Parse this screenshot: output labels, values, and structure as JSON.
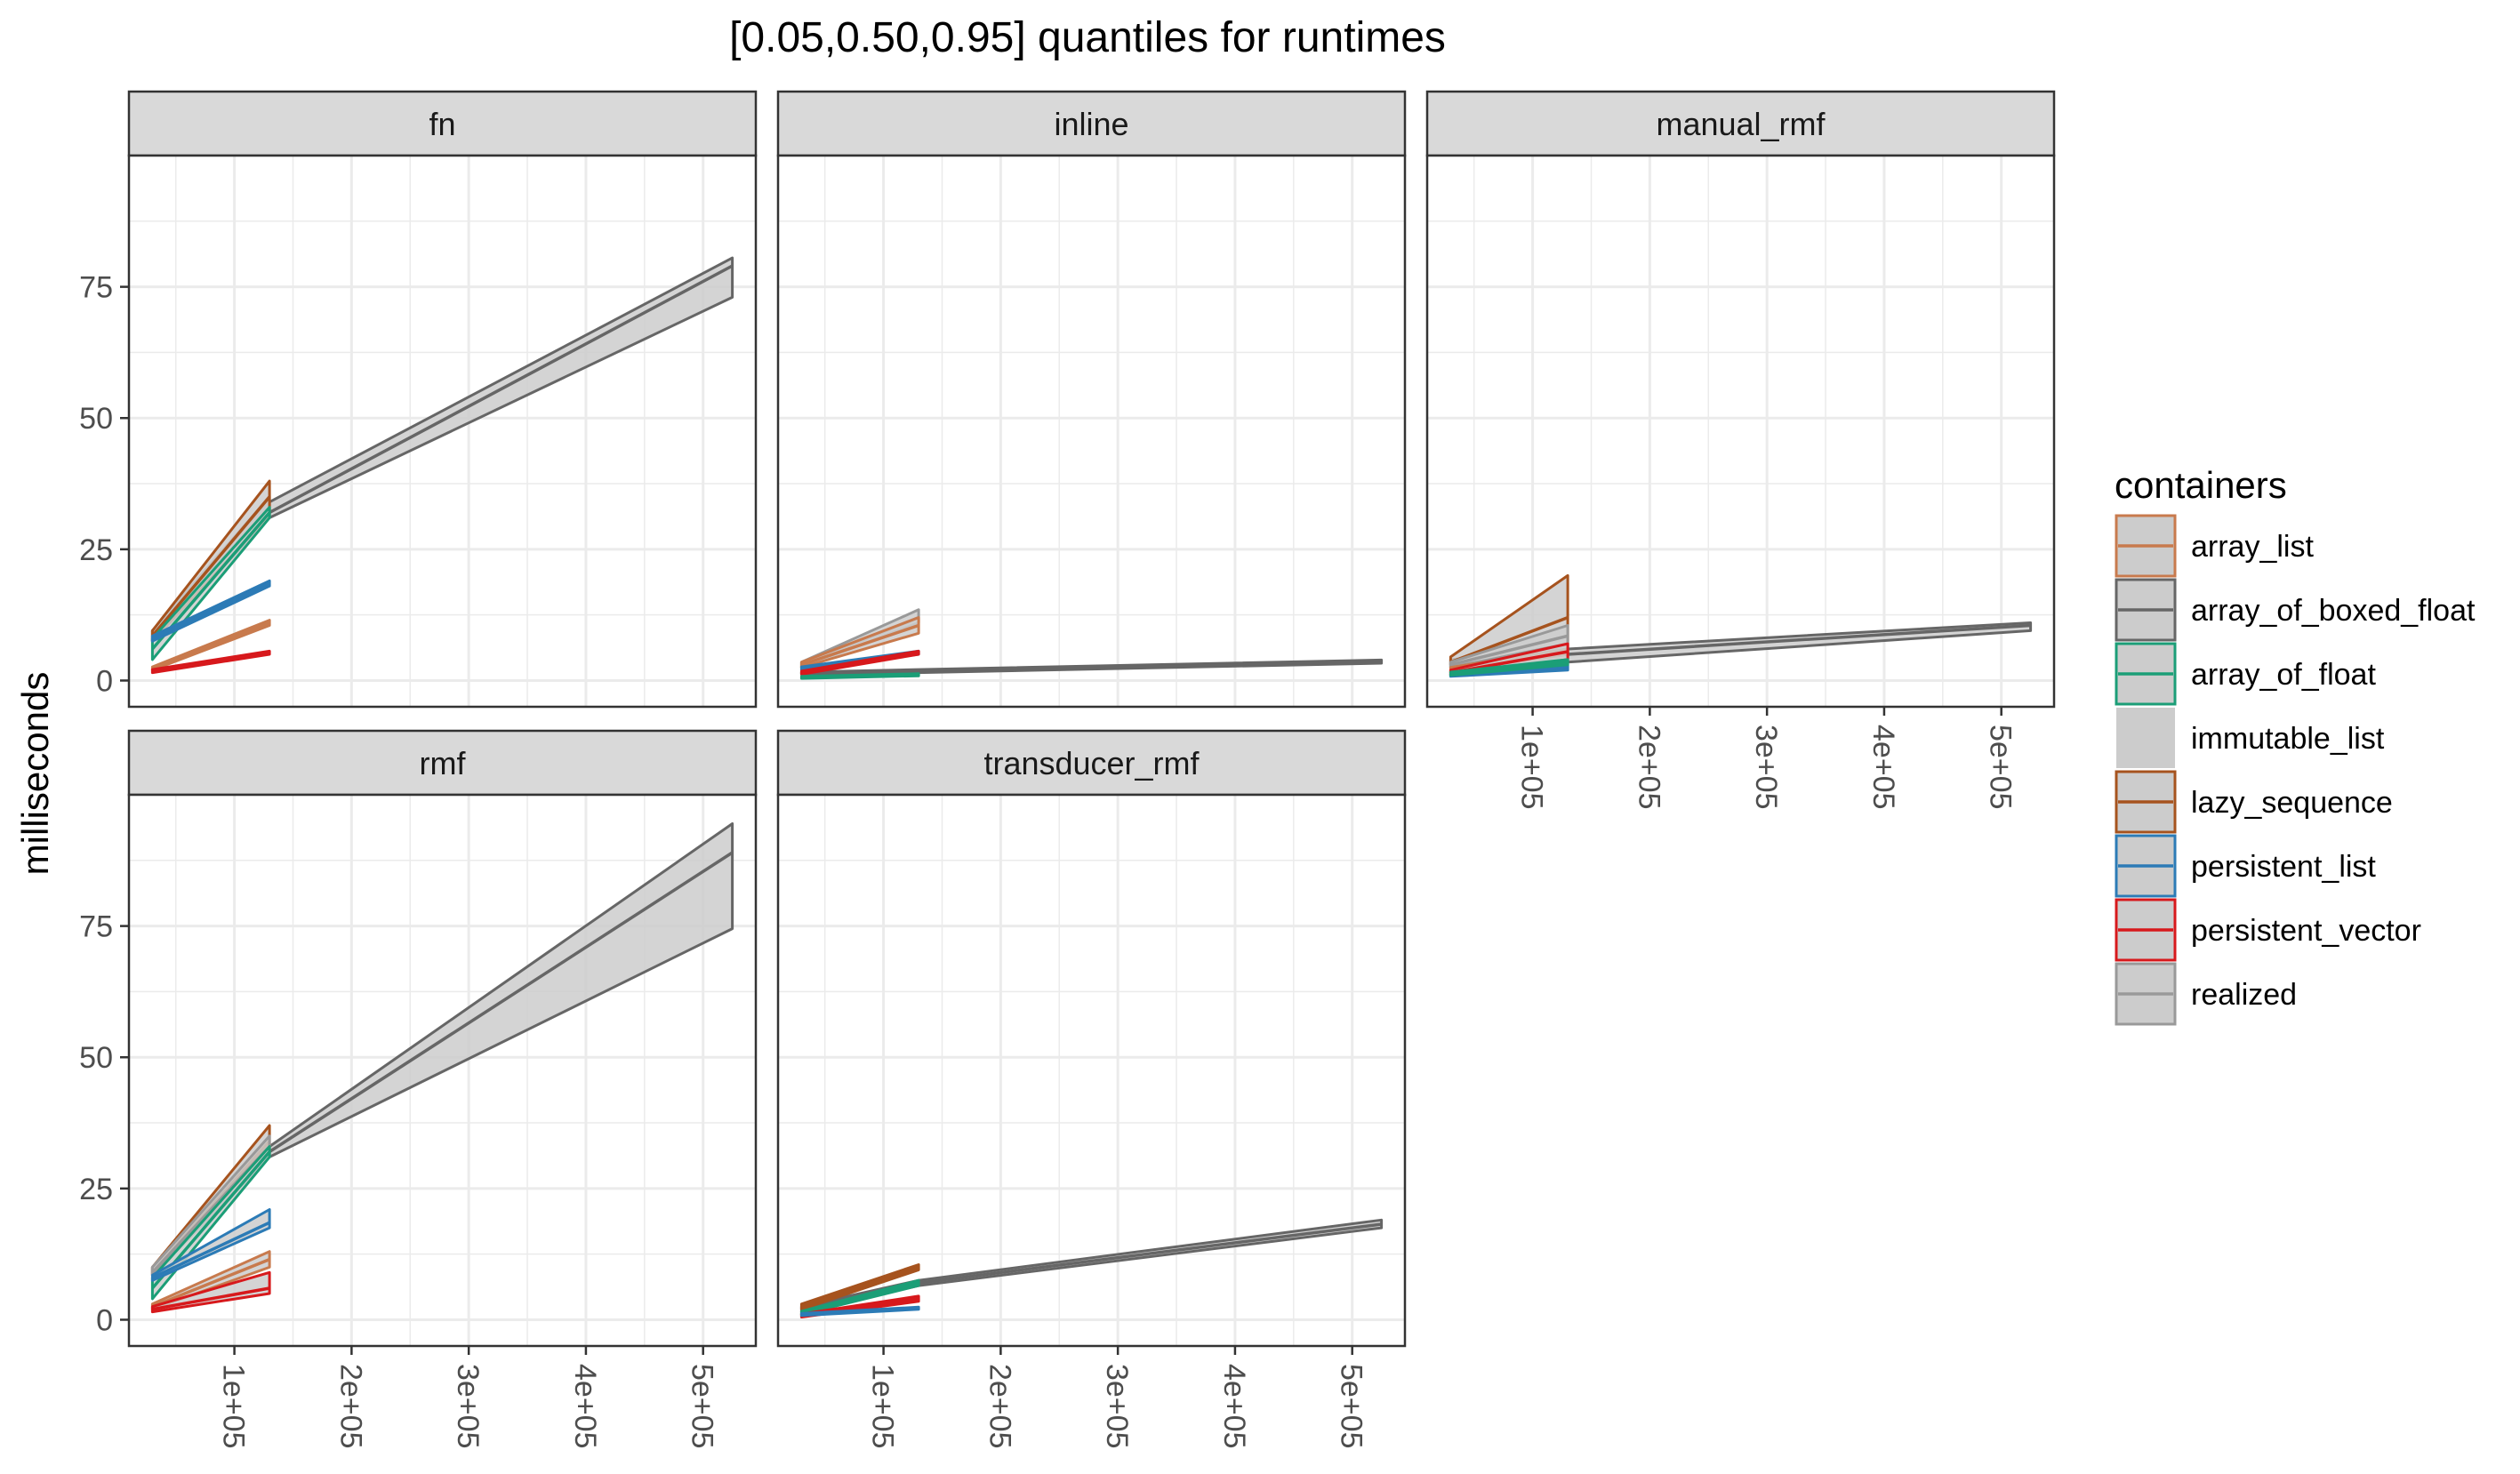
{
  "chart_data": {
    "type": "area",
    "title": "[0.05,0.50,0.95] quantiles for runtimes",
    "ylabel": "milliseconds",
    "xlabel": "",
    "ylim": [
      -5,
      100
    ],
    "xlim": [
      10000,
      545000
    ],
    "yticks": [
      0,
      25,
      50,
      75
    ],
    "xticks": [
      100000,
      200000,
      300000,
      400000,
      500000
    ],
    "xtick_labels": [
      "1e+05",
      "2e+05",
      "3e+05",
      "4e+05",
      "5e+05"
    ],
    "grid": true,
    "legend": {
      "title": "containers",
      "position": "right",
      "entries": [
        "array_list",
        "array_of_boxed_float",
        "array_of_float",
        "immutable_list",
        "lazy_sequence",
        "persistent_list",
        "persistent_vector",
        "realized"
      ]
    },
    "colors": {
      "array_list": "#c87a4d",
      "array_of_boxed_float": "#666666",
      "array_of_float": "#1b9e77",
      "immutable_list": "#d3d3d3",
      "lazy_sequence": "#a6531e",
      "persistent_list": "#2c7bb6",
      "persistent_vector": "#d7191c",
      "realized": "#999999",
      "ribbon_fill": "#cccccc",
      "strip_fill": "#d9d9d9",
      "grid": "#ebebeb"
    },
    "panels": [
      {
        "name": "fn",
        "series": [
          {
            "name": "array_of_boxed_float",
            "x": [
              30000,
              130000,
              525000
            ],
            "low": [
              7.5,
              31,
              73
            ],
            "mid": [
              8.5,
              32,
              79
            ],
            "high": [
              9.5,
              34,
              80.5
            ]
          },
          {
            "name": "realized",
            "x": [
              30000,
              130000
            ],
            "low": [
              7.5,
              31
            ],
            "mid": [
              8.5,
              33
            ],
            "high": [
              9.5,
              35
            ]
          },
          {
            "name": "lazy_sequence",
            "x": [
              30000,
              130000
            ],
            "low": [
              7.5,
              31.5
            ],
            "mid": [
              8.5,
              35
            ],
            "high": [
              9.5,
              38
            ]
          },
          {
            "name": "array_of_float",
            "x": [
              30000,
              130000
            ],
            "low": [
              4,
              31
            ],
            "mid": [
              6,
              32
            ],
            "high": [
              8,
              33
            ]
          },
          {
            "name": "persistent_list",
            "x": [
              30000,
              130000
            ],
            "low": [
              7.5,
              18
            ],
            "mid": [
              8,
              18.5
            ],
            "high": [
              8.5,
              19
            ]
          },
          {
            "name": "array_list",
            "x": [
              30000,
              130000
            ],
            "low": [
              2,
              10.5
            ],
            "mid": [
              2.3,
              11
            ],
            "high": [
              2.6,
              11.5
            ]
          },
          {
            "name": "persistent_vector",
            "x": [
              30000,
              130000
            ],
            "low": [
              1.5,
              5
            ],
            "mid": [
              1.8,
              5.3
            ],
            "high": [
              2.1,
              5.6
            ]
          }
        ]
      },
      {
        "name": "inline",
        "series": [
          {
            "name": "array_of_boxed_float",
            "x": [
              30000,
              130000,
              525000
            ],
            "low": [
              1.2,
              1.5,
              3.3
            ],
            "mid": [
              1.4,
              1.8,
              3.6
            ],
            "high": [
              1.6,
              2.1,
              3.9
            ]
          },
          {
            "name": "realized",
            "x": [
              30000,
              130000
            ],
            "low": [
              2.5,
              11
            ],
            "mid": [
              3,
              12
            ],
            "high": [
              3.5,
              13.5
            ]
          },
          {
            "name": "array_list",
            "x": [
              30000,
              130000
            ],
            "low": [
              2.5,
              9
            ],
            "mid": [
              3,
              10.5
            ],
            "high": [
              3.5,
              12
            ]
          },
          {
            "name": "persistent_list",
            "x": [
              30000,
              130000
            ],
            "low": [
              2,
              5
            ],
            "mid": [
              2.3,
              5.3
            ],
            "high": [
              2.6,
              5.6
            ]
          },
          {
            "name": "persistent_vector",
            "x": [
              30000,
              130000
            ],
            "low": [
              1.2,
              5
            ],
            "mid": [
              1.5,
              5.3
            ],
            "high": [
              1.8,
              5.6
            ]
          },
          {
            "name": "array_of_float",
            "x": [
              30000,
              130000
            ],
            "low": [
              0.4,
              0.9
            ],
            "mid": [
              0.6,
              1.1
            ],
            "high": [
              0.8,
              1.3
            ]
          }
        ]
      },
      {
        "name": "manual_rmf",
        "series": [
          {
            "name": "array_of_boxed_float",
            "x": [
              30000,
              130000,
              525000
            ],
            "low": [
              2.5,
              3.5,
              9.5
            ],
            "mid": [
              3,
              5,
              10.5
            ],
            "high": [
              4,
              6,
              11
            ]
          },
          {
            "name": "lazy_sequence",
            "x": [
              30000,
              130000
            ],
            "low": [
              3,
              5
            ],
            "mid": [
              3.5,
              12
            ],
            "high": [
              4.5,
              20
            ]
          },
          {
            "name": "realized",
            "x": [
              30000,
              130000
            ],
            "low": [
              2.5,
              7
            ],
            "mid": [
              3,
              8.5
            ],
            "high": [
              3.5,
              10.5
            ]
          },
          {
            "name": "array_list",
            "x": [
              30000,
              130000
            ],
            "low": [
              1.5,
              4
            ],
            "mid": [
              2,
              5
            ],
            "high": [
              2.5,
              6
            ]
          },
          {
            "name": "persistent_vector",
            "x": [
              30000,
              130000
            ],
            "low": [
              1,
              4
            ],
            "mid": [
              1.5,
              5.5
            ],
            "high": [
              2,
              7
            ]
          },
          {
            "name": "persistent_list",
            "x": [
              30000,
              130000
            ],
            "low": [
              0.8,
              2
            ],
            "mid": [
              1,
              2.5
            ],
            "high": [
              1.2,
              3
            ]
          },
          {
            "name": "array_of_float",
            "x": [
              30000,
              130000
            ],
            "low": [
              1,
              3
            ],
            "mid": [
              1.3,
              3.5
            ],
            "high": [
              1.6,
              4
            ]
          }
        ]
      },
      {
        "name": "rmf",
        "series": [
          {
            "name": "array_of_boxed_float",
            "x": [
              30000,
              130000,
              525000
            ],
            "low": [
              8.5,
              31,
              74.5
            ],
            "mid": [
              9,
              32,
              89
            ],
            "high": [
              10,
              33,
              94.5
            ]
          },
          {
            "name": "lazy_sequence",
            "x": [
              30000,
              130000
            ],
            "low": [
              8.5,
              31.5
            ],
            "mid": [
              9,
              34
            ],
            "high": [
              10,
              37
            ]
          },
          {
            "name": "realized",
            "x": [
              30000,
              130000
            ],
            "low": [
              8.5,
              31
            ],
            "mid": [
              9,
              33
            ],
            "high": [
              10,
              35
            ]
          },
          {
            "name": "array_of_float",
            "x": [
              30000,
              130000
            ],
            "low": [
              4,
              31
            ],
            "mid": [
              6,
              32
            ],
            "high": [
              8,
              33
            ]
          },
          {
            "name": "persistent_list",
            "x": [
              30000,
              130000
            ],
            "low": [
              7.5,
              17.5
            ],
            "mid": [
              8,
              18.5
            ],
            "high": [
              8.5,
              21
            ]
          },
          {
            "name": "array_list",
            "x": [
              30000,
              130000
            ],
            "low": [
              2,
              10
            ],
            "mid": [
              2.5,
              11.5
            ],
            "high": [
              3,
              13
            ]
          },
          {
            "name": "persistent_vector",
            "x": [
              30000,
              130000
            ],
            "low": [
              1.5,
              5
            ],
            "mid": [
              2,
              6
            ],
            "high": [
              2.5,
              9
            ]
          }
        ]
      },
      {
        "name": "transducer_rmf",
        "series": [
          {
            "name": "array_of_boxed_float",
            "x": [
              30000,
              130000,
              525000
            ],
            "low": [
              1.5,
              6.5,
              17.5
            ],
            "mid": [
              2,
              7,
              18.2
            ],
            "high": [
              2.5,
              7.5,
              19
            ]
          },
          {
            "name": "lazy_sequence",
            "x": [
              30000,
              130000
            ],
            "low": [
              2,
              9.5
            ],
            "mid": [
              2.5,
              10
            ],
            "high": [
              3,
              10.5
            ]
          },
          {
            "name": "array_of_float",
            "x": [
              30000,
              130000
            ],
            "low": [
              1,
              6.5
            ],
            "mid": [
              1.3,
              7
            ],
            "high": [
              1.6,
              7.5
            ]
          },
          {
            "name": "persistent_vector",
            "x": [
              30000,
              130000
            ],
            "low": [
              0.5,
              3.5
            ],
            "mid": [
              0.8,
              4
            ],
            "high": [
              1.1,
              4.5
            ]
          },
          {
            "name": "persistent_list",
            "x": [
              30000,
              130000
            ],
            "low": [
              0.8,
              2
            ],
            "mid": [
              1,
              2.2
            ],
            "high": [
              1.2,
              2.4
            ]
          }
        ]
      }
    ]
  }
}
